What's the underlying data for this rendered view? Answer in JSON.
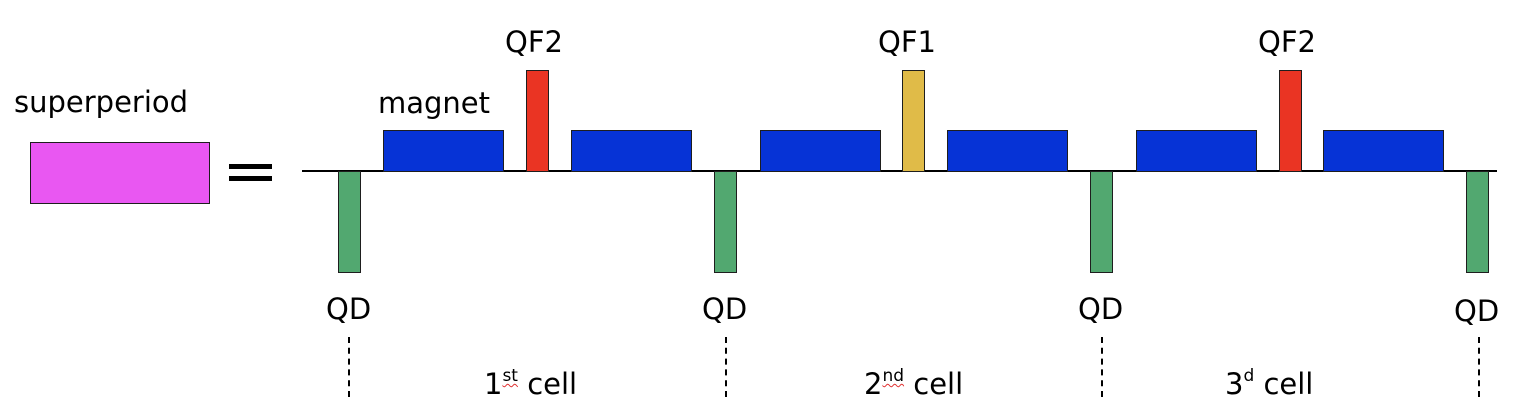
{
  "labels": {
    "superperiod": "superperiod",
    "magnet": "magnet",
    "equals": "="
  },
  "quads": {
    "qd": "QD",
    "qf1": "QF1",
    "qf2": "QF2"
  },
  "cells": [
    {
      "num": "1",
      "suffix": "st",
      "word": "cell"
    },
    {
      "num": "2",
      "suffix": "nd",
      "word": "cell"
    },
    {
      "num": "3",
      "suffix": "d",
      "word": "cell"
    }
  ],
  "colors": {
    "magnet": "#0633d6",
    "qd": "#52a870",
    "qf2": "#ea3423",
    "qf1": "#e0bb48",
    "superperiod": "#e957f2"
  }
}
